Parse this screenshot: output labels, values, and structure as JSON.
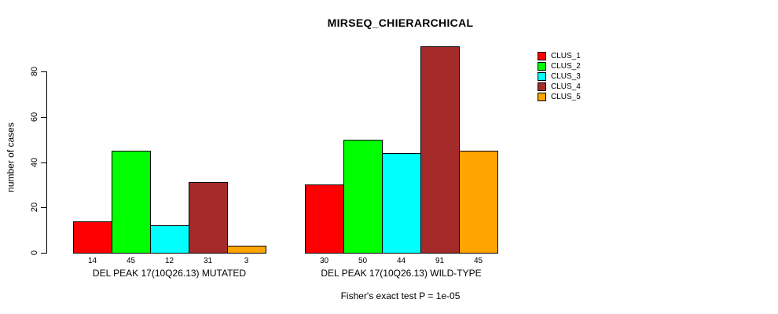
{
  "window": {
    "background": "#ffffff"
  },
  "chart_data": {
    "type": "bar",
    "title": "MIRSEQ_CHIERARCHICAL",
    "ylabel": "number of cases",
    "yticks": [
      0,
      20,
      40,
      60,
      80
    ],
    "ylim": [
      0,
      91
    ],
    "grid": false,
    "legend_position": "top-right",
    "bar_value_labels": true,
    "series": [
      {
        "name": "CLUS_1",
        "color": "#FF0000"
      },
      {
        "name": "CLUS_2",
        "color": "#00FF00"
      },
      {
        "name": "CLUS_3",
        "color": "#00FFFF"
      },
      {
        "name": "CLUS_4",
        "color": "#A52A2A"
      },
      {
        "name": "CLUS_5",
        "color": "#FFA500"
      }
    ],
    "groups": [
      {
        "label": "DEL PEAK 17(10Q26.13) MUTATED",
        "values": [
          14,
          45,
          12,
          31,
          3
        ]
      },
      {
        "label": "DEL PEAK 17(10Q26.13) WILD-TYPE",
        "values": [
          30,
          50,
          44,
          91,
          45
        ]
      }
    ],
    "annotation": "Fisher's exact test P = 1e-05"
  }
}
